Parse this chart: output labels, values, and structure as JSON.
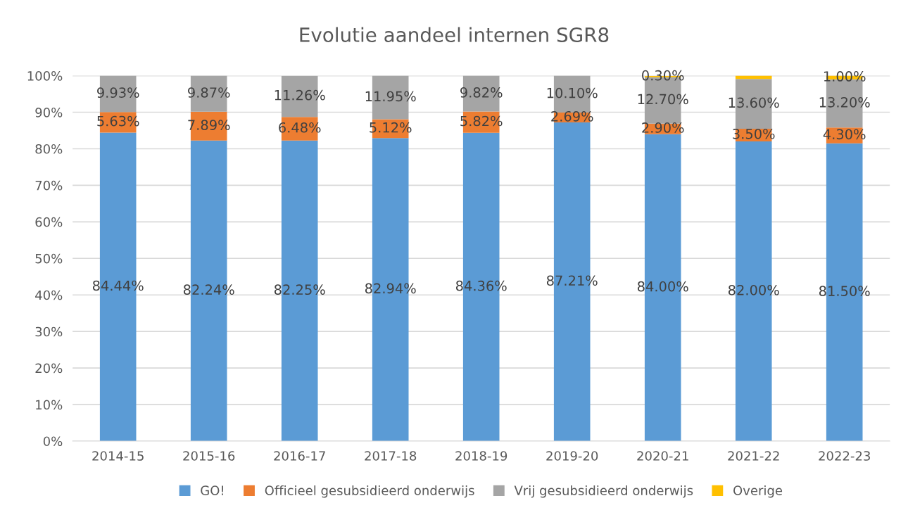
{
  "chart_data": {
    "type": "bar",
    "title": "Evolutie aandeel internen SGR8",
    "stacked": true,
    "categories": [
      "2014-15",
      "2015-16",
      "2016-17",
      "2017-18",
      "2018-19",
      "2019-20",
      "2020-21",
      "2021-22",
      "2022-23"
    ],
    "series": [
      {
        "name": "GO!",
        "color": "#5b9bd5",
        "values": [
          84.44,
          82.24,
          82.25,
          82.94,
          84.36,
          87.21,
          84.0,
          82.0,
          81.5
        ],
        "value_labels": [
          "84.44%",
          "82.24%",
          "82.25%",
          "82.94%",
          "84.36%",
          "87.21%",
          "84.00%",
          "82.00%",
          "81.50%"
        ]
      },
      {
        "name": "Officieel gesubsidieerd onderwijs",
        "color": "#ed7d31",
        "values": [
          5.63,
          7.89,
          6.48,
          5.12,
          5.82,
          2.69,
          2.9,
          3.5,
          4.3
        ],
        "value_labels": [
          "5.63%",
          "7.89%",
          "6.48%",
          "5.12%",
          "5.82%",
          "2.69%",
          "2.90%",
          "3.50%",
          "4.30%"
        ]
      },
      {
        "name": "Vrij gesubsidieerd onderwijs",
        "color": "#a5a5a5",
        "values": [
          9.93,
          9.87,
          11.26,
          11.95,
          9.82,
          10.1,
          12.7,
          13.6,
          13.2
        ],
        "value_labels": [
          "9.93%",
          "9.87%",
          "11.26%",
          "11.95%",
          "9.82%",
          "10.10%",
          "12.70%",
          "13.60%",
          "13.20%"
        ]
      },
      {
        "name": "Overige",
        "color": "#ffc000",
        "values": [
          null,
          null,
          null,
          null,
          null,
          null,
          0.3,
          0.9,
          1.0
        ],
        "value_labels": [
          null,
          null,
          null,
          null,
          null,
          null,
          "0.30%",
          null,
          "1.00%"
        ]
      }
    ],
    "ylim": [
      0,
      100
    ],
    "yticks": [
      {
        "value": 0,
        "label": "0%"
      },
      {
        "value": 10,
        "label": "10%"
      },
      {
        "value": 20,
        "label": "20%"
      },
      {
        "value": 30,
        "label": "30%"
      },
      {
        "value": 40,
        "label": "40%"
      },
      {
        "value": 50,
        "label": "50%"
      },
      {
        "value": 60,
        "label": "60%"
      },
      {
        "value": 70,
        "label": "70%"
      },
      {
        "value": 80,
        "label": "80%"
      },
      {
        "value": 90,
        "label": "90%"
      },
      {
        "value": 100,
        "label": "100%"
      }
    ],
    "grid": "y",
    "legend": "bottom"
  }
}
